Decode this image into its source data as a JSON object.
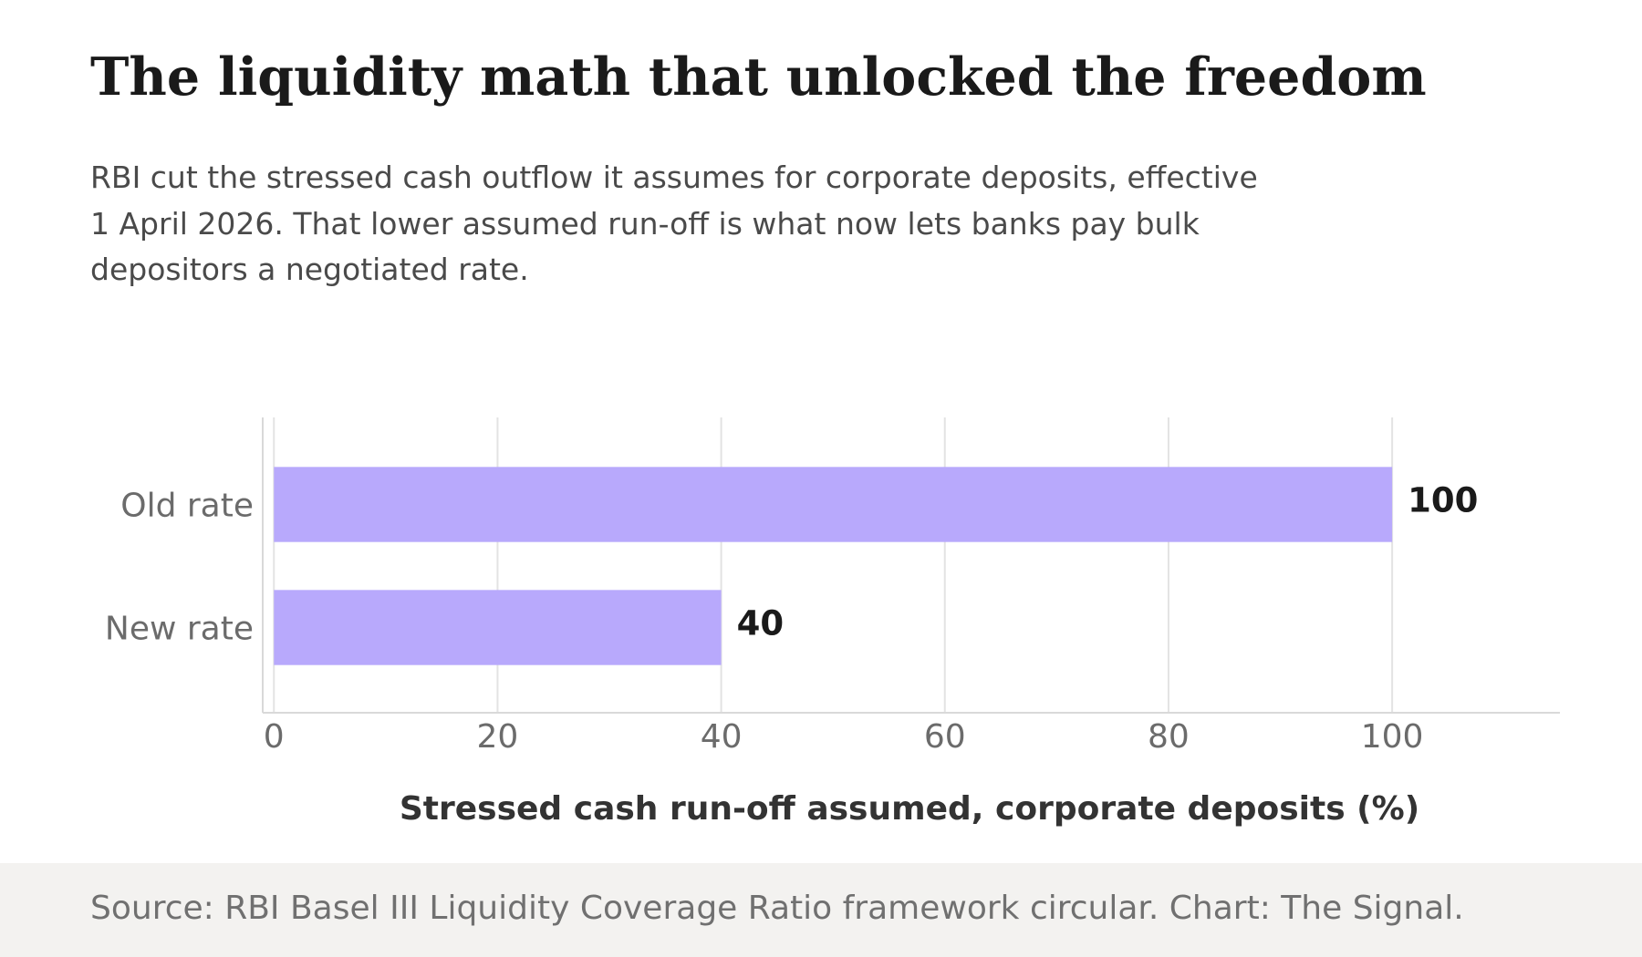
{
  "chart_data": {
    "type": "bar",
    "orientation": "horizontal",
    "title": "The liquidity math that unlocked the freedom",
    "subtitle": "RBI cut the stressed cash outflow it assumes for corporate deposits, effective 1 April 2026. That lower assumed run-off is what now lets banks pay bulk depositors a negotiated rate.",
    "categories": [
      "Old rate",
      "New rate"
    ],
    "values": [
      100,
      40
    ],
    "data_labels": [
      "100",
      "40"
    ],
    "xlabel": "Stressed cash run-off assumed, corporate deposits (%)",
    "ylabel": "",
    "xlim": [
      -1,
      115
    ],
    "xticks": [
      0,
      20,
      40,
      60,
      80,
      100
    ],
    "grid": "vertical",
    "bar_color": "#b8a9fc",
    "source": "Source: RBI Basel III Liquidity Coverage Ratio framework circular. Chart: The Signal."
  }
}
